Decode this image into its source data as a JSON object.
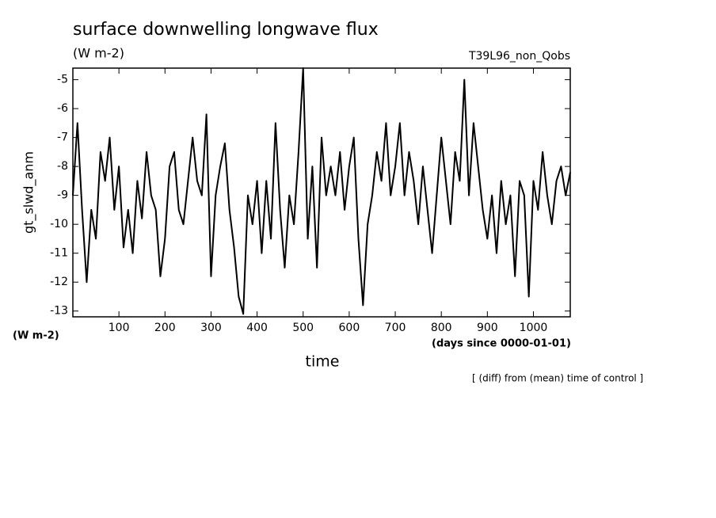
{
  "chart_data": {
    "type": "line",
    "title": "surface downwelling longwave flux",
    "subtitle": "(W m-2)",
    "run_label": "T39L96_non_Qobs",
    "y_label": "gt_slwd_anm",
    "y_unit": "(W m-2)",
    "x_unit": "(days since 0000-01-01)",
    "x_label": "time",
    "note": "[ (diff) from (mean) time of control ]",
    "xlim": [
      0,
      1080
    ],
    "ylim": [
      -13.2,
      -4.6
    ],
    "xticks": [
      100,
      200,
      300,
      400,
      500,
      600,
      700,
      800,
      900,
      1000
    ],
    "yticks": [
      -13,
      -12,
      -11,
      -10,
      -9,
      -8,
      -7,
      -6,
      -5
    ],
    "grid": false,
    "x": [
      0,
      10,
      20,
      30,
      40,
      50,
      60,
      70,
      80,
      90,
      100,
      110,
      120,
      130,
      140,
      150,
      160,
      170,
      180,
      190,
      200,
      210,
      220,
      230,
      240,
      250,
      260,
      270,
      280,
      290,
      300,
      310,
      320,
      330,
      340,
      350,
      360,
      370,
      380,
      390,
      400,
      410,
      420,
      430,
      440,
      450,
      460,
      470,
      480,
      490,
      500,
      510,
      520,
      530,
      540,
      550,
      560,
      570,
      580,
      590,
      600,
      610,
      620,
      630,
      640,
      650,
      660,
      670,
      680,
      690,
      700,
      710,
      720,
      730,
      740,
      750,
      760,
      770,
      780,
      790,
      800,
      810,
      820,
      830,
      840,
      850,
      860,
      870,
      880,
      890,
      900,
      910,
      920,
      930,
      940,
      950,
      960,
      970,
      980,
      990,
      1000,
      1010,
      1020,
      1030,
      1040,
      1050,
      1060,
      1070,
      1080
    ],
    "series": [
      {
        "color": "#000000",
        "values": [
          -9.0,
          -6.5,
          -9.5,
          -12.0,
          -9.5,
          -10.5,
          -7.5,
          -8.5,
          -7.0,
          -9.5,
          -8.0,
          -10.8,
          -9.5,
          -11.0,
          -8.5,
          -9.8,
          -7.5,
          -9.0,
          -9.5,
          -11.8,
          -10.5,
          -8.0,
          -7.5,
          -9.5,
          -10.0,
          -8.5,
          -7.0,
          -8.5,
          -9.0,
          -6.2,
          -11.8,
          -9.0,
          -8.0,
          -7.2,
          -9.5,
          -10.8,
          -12.5,
          -13.1,
          -9.0,
          -10.0,
          -8.5,
          -11.0,
          -8.5,
          -10.5,
          -6.5,
          -9.5,
          -11.5,
          -9.0,
          -10.0,
          -7.5,
          -4.6,
          -10.5,
          -8.0,
          -11.5,
          -7.0,
          -9.0,
          -8.0,
          -9.0,
          -7.5,
          -9.5,
          -8.0,
          -7.0,
          -10.5,
          -12.8,
          -10.0,
          -9.0,
          -7.5,
          -8.5,
          -6.5,
          -9.0,
          -8.0,
          -6.5,
          -9.0,
          -7.5,
          -8.5,
          -10.0,
          -8.0,
          -9.5,
          -11.0,
          -9.0,
          -7.0,
          -8.5,
          -10.0,
          -7.5,
          -8.5,
          -5.0,
          -9.0,
          -6.5,
          -8.0,
          -9.5,
          -10.5,
          -9.0,
          -11.0,
          -8.5,
          -10.0,
          -9.0,
          -11.8,
          -8.5,
          -9.0,
          -12.5,
          -8.5,
          -9.5,
          -7.5,
          -9.0,
          -10.0,
          -8.5,
          -8.0,
          -9.0,
          -8.2
        ]
      }
    ]
  }
}
